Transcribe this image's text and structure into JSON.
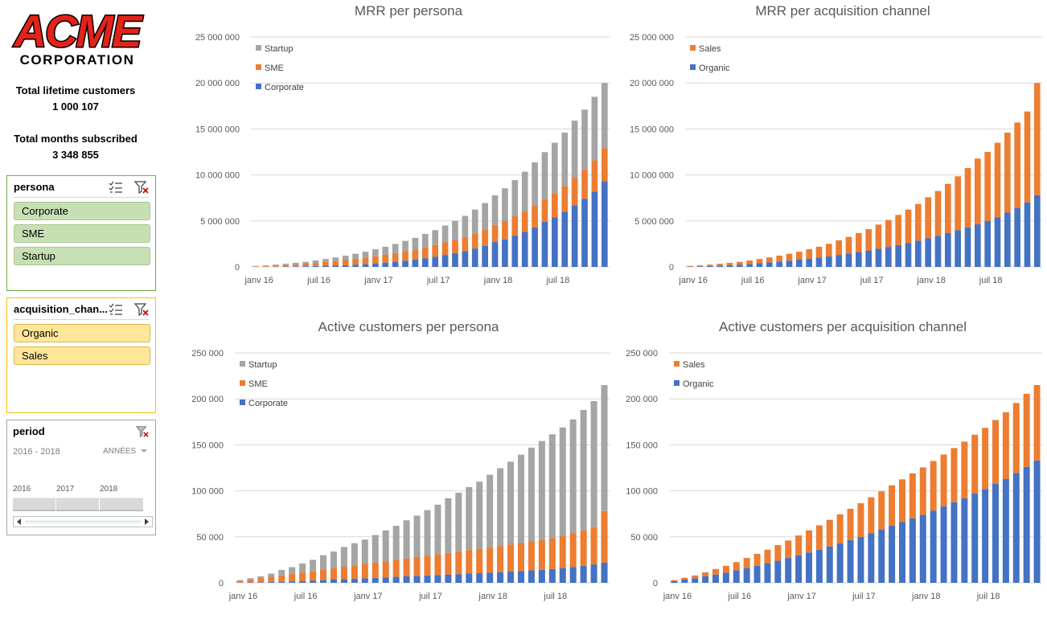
{
  "logo": {
    "line1": "ACME",
    "line2": "CORPORATION"
  },
  "stats": [
    {
      "label": "Total lifetime customers",
      "value": "1 000 107"
    },
    {
      "label": "Total months subscribed",
      "value": "3 348 855"
    }
  ],
  "slicers": {
    "persona": {
      "title": "persona",
      "items": [
        "Corporate",
        "SME",
        "Startup"
      ]
    },
    "acquisition": {
      "title": "acquisition_chan...",
      "items": [
        "Organic",
        "Sales"
      ]
    },
    "period": {
      "title": "period",
      "range": "2016 - 2018",
      "level": "ANNÉES",
      "years": [
        "2016",
        "2017",
        "2018"
      ]
    }
  },
  "colors": {
    "corporate": "#4472c4",
    "sme": "#ed7d31",
    "startup": "#a5a5a5",
    "organic": "#4472c4",
    "sales": "#ed7d31",
    "persona_border": "#70ad47",
    "acq_border": "#ffc000",
    "period_border": "#a5a5a5"
  },
  "icons": [
    "multi-select-icon",
    "clear-filter-icon",
    "scroll-left-icon",
    "scroll-right-icon",
    "chevron-down-icon"
  ],
  "chart_data": [
    {
      "type": "bar",
      "stacked": true,
      "title": "MRR per persona",
      "x": [
        "janv 16",
        "févr 16",
        "mars 16",
        "avr 16",
        "mai 16",
        "juin 16",
        "juil 16",
        "août 16",
        "sept 16",
        "oct 16",
        "nov 16",
        "déc 16",
        "janv 17",
        "févr 17",
        "mars 17",
        "avr 17",
        "mai 17",
        "juin 17",
        "juil 17",
        "août 17",
        "sept 17",
        "oct 17",
        "nov 17",
        "déc 17",
        "janv 18",
        "févr 18",
        "mars 18",
        "avr 18",
        "mai 18",
        "juin 18",
        "juil 18",
        "août 18",
        "sept 18",
        "oct 18",
        "nov 18",
        "déc 18"
      ],
      "xticks": [
        "janv 16",
        "juil 16",
        "janv 17",
        "juil 17",
        "janv 18",
        "juil 18"
      ],
      "ylim": [
        0,
        25000000
      ],
      "yticks": [
        "0",
        "5 000 000",
        "10 000 000",
        "15 000 000",
        "20 000 000",
        "25 000 000"
      ],
      "legend_position": "top-left",
      "series": [
        {
          "name": "Corporate",
          "color": "#4472c4",
          "values": [
            10000,
            20000,
            30000,
            40000,
            60000,
            80000,
            100000,
            130000,
            160000,
            200000,
            250000,
            300000,
            380000,
            460000,
            560000,
            680000,
            800000,
            950000,
            1100000,
            1300000,
            1500000,
            1700000,
            2000000,
            2300000,
            2700000,
            3000000,
            3400000,
            3800000,
            4300000,
            4900000,
            5400000,
            6000000,
            6700000,
            7400000,
            8200000,
            9300000
          ]
        },
        {
          "name": "SME",
          "color": "#ed7d31",
          "values": [
            60000,
            90000,
            130000,
            170000,
            220000,
            270000,
            330000,
            400000,
            470000,
            540000,
            620000,
            700000,
            780000,
            860000,
            950000,
            1030000,
            1100000,
            1200000,
            1280000,
            1370000,
            1450000,
            1550000,
            1650000,
            1750000,
            1870000,
            1990000,
            2100000,
            2220000,
            2340000,
            2480000,
            2620000,
            2800000,
            3000000,
            3200000,
            3400000,
            3600000
          ]
        },
        {
          "name": "Startup",
          "color": "#a5a5a5",
          "values": [
            40000,
            60000,
            90000,
            130000,
            160000,
            200000,
            270000,
            330000,
            400000,
            480000,
            560000,
            650000,
            760000,
            870000,
            990000,
            1120000,
            1260000,
            1430000,
            1620000,
            1830000,
            2050000,
            2300000,
            2580000,
            2890000,
            3210000,
            3560000,
            3930000,
            4330000,
            4720000,
            5100000,
            5480000,
            5800000,
            6200000,
            6500000,
            6900000,
            7100000
          ]
        }
      ]
    },
    {
      "type": "bar",
      "stacked": true,
      "title": "MRR per acquisition channel",
      "x": [
        "janv 16",
        "févr 16",
        "mars 16",
        "avr 16",
        "mai 16",
        "juin 16",
        "juil 16",
        "août 16",
        "sept 16",
        "oct 16",
        "nov 16",
        "déc 16",
        "janv 17",
        "févr 17",
        "mars 17",
        "avr 17",
        "mai 17",
        "juin 17",
        "juil 17",
        "août 17",
        "sept 17",
        "oct 17",
        "nov 17",
        "déc 17",
        "janv 18",
        "févr 18",
        "mars 18",
        "avr 18",
        "mai 18",
        "juin 18",
        "juil 18",
        "août 18",
        "sept 18",
        "oct 18",
        "nov 18",
        "déc 18"
      ],
      "xticks": [
        "janv 16",
        "juil 16",
        "janv 17",
        "juil 17",
        "janv 18",
        "juil 18"
      ],
      "ylim": [
        0,
        25000000
      ],
      "yticks": [
        "0",
        "5 000 000",
        "10 000 000",
        "15 000 000",
        "20 000 000",
        "25 000 000"
      ],
      "legend_position": "top-left",
      "series": [
        {
          "name": "Organic",
          "color": "#4472c4",
          "values": [
            30000,
            60000,
            100000,
            150000,
            200000,
            250000,
            320000,
            400000,
            490000,
            580000,
            680000,
            790000,
            900000,
            1020000,
            1150000,
            1300000,
            1450000,
            1610000,
            1780000,
            1970000,
            2170000,
            2380000,
            2610000,
            2850000,
            3100000,
            3380000,
            3670000,
            3980000,
            4300000,
            4630000,
            5000000,
            5400000,
            5900000,
            6400000,
            7000000,
            7800000
          ]
        },
        {
          "name": "Sales",
          "color": "#ed7d31",
          "values": [
            80000,
            110000,
            150000,
            190000,
            240000,
            300000,
            380000,
            460000,
            540000,
            640000,
            750000,
            860000,
            1020000,
            1170000,
            1360000,
            1590000,
            1810000,
            2070000,
            2320000,
            2630000,
            2930000,
            3270000,
            3620000,
            3990000,
            4470000,
            4870000,
            5360000,
            5870000,
            6460000,
            7150000,
            7500000,
            8100000,
            8700000,
            9300000,
            9900000,
            12200000
          ]
        }
      ]
    },
    {
      "type": "bar",
      "stacked": true,
      "title": "Active customers per persona",
      "x": [
        "janv 16",
        "févr 16",
        "mars 16",
        "avr 16",
        "mai 16",
        "juin 16",
        "juil 16",
        "août 16",
        "sept 16",
        "oct 16",
        "nov 16",
        "déc 16",
        "janv 17",
        "févr 17",
        "mars 17",
        "avr 17",
        "mai 17",
        "juin 17",
        "juil 17",
        "août 17",
        "sept 17",
        "oct 17",
        "nov 17",
        "déc 17",
        "janv 18",
        "févr 18",
        "mars 18",
        "avr 18",
        "mai 18",
        "juin 18",
        "juil 18",
        "août 18",
        "sept 18",
        "oct 18",
        "nov 18",
        "déc 18"
      ],
      "xticks": [
        "janv 16",
        "juil 16",
        "janv 17",
        "juil 17",
        "janv 18",
        "juil 18"
      ],
      "ylim": [
        0,
        250000
      ],
      "yticks": [
        "0",
        "50 000",
        "100 000",
        "150 000",
        "200 000",
        "250 000"
      ],
      "legend_position": "top-left",
      "series": [
        {
          "name": "Corporate",
          "color": "#4472c4",
          "values": [
            200,
            400,
            600,
            900,
            1200,
            1600,
            2000,
            2500,
            3000,
            3500,
            4000,
            4500,
            5000,
            5500,
            6000,
            6500,
            7000,
            7500,
            8000,
            8500,
            9000,
            9500,
            10000,
            10500,
            11000,
            11600,
            12200,
            12800,
            13500,
            14200,
            15000,
            16000,
            17200,
            18500,
            20000,
            22000
          ]
        },
        {
          "name": "SME",
          "color": "#ed7d31",
          "values": [
            1800,
            3100,
            4400,
            5600,
            6800,
            8000,
            9200,
            10300,
            11400,
            12500,
            13500,
            14500,
            15500,
            16500,
            17500,
            18500,
            19500,
            20500,
            21500,
            22500,
            23500,
            24500,
            25500,
            26500,
            27500,
            28500,
            29500,
            30500,
            31500,
            32500,
            33500,
            35000,
            36500,
            38500,
            40500,
            56000
          ]
        },
        {
          "name": "Startup",
          "color": "#a5a5a5",
          "values": [
            1000,
            1500,
            2000,
            3500,
            6000,
            7400,
            9800,
            12200,
            15600,
            18000,
            21500,
            24000,
            26500,
            30000,
            33500,
            37000,
            41500,
            45000,
            49500,
            54000,
            59500,
            64000,
            68500,
            73000,
            79000,
            84500,
            90000,
            96000,
            102000,
            107500,
            113000,
            118000,
            124000,
            131000,
            137000,
            137000
          ]
        }
      ]
    },
    {
      "type": "bar",
      "stacked": true,
      "title": "Active customers per acquisition channel",
      "x": [
        "janv 16",
        "févr 16",
        "mars 16",
        "avr 16",
        "mai 16",
        "juin 16",
        "juil 16",
        "août 16",
        "sept 16",
        "oct 16",
        "nov 16",
        "déc 16",
        "janv 17",
        "févr 17",
        "mars 17",
        "avr 17",
        "mai 17",
        "juin 17",
        "juil 17",
        "août 17",
        "sept 17",
        "oct 17",
        "nov 17",
        "déc 17",
        "janv 18",
        "févr 18",
        "mars 18",
        "avr 18",
        "mai 18",
        "juin 18",
        "juil 18",
        "août 18",
        "sept 18",
        "oct 18",
        "nov 18",
        "déc 18"
      ],
      "xticks": [
        "janv 16",
        "juil 16",
        "janv 17",
        "juil 17",
        "janv 18",
        "juil 18"
      ],
      "ylim": [
        0,
        250000
      ],
      "yticks": [
        "0",
        "50 000",
        "100 000",
        "150 000",
        "200 000",
        "250 000"
      ],
      "legend_position": "top-left",
      "series": [
        {
          "name": "Organic",
          "color": "#4472c4",
          "values": [
            2000,
            3500,
            5000,
            7000,
            9000,
            11000,
            13500,
            16000,
            18500,
            21000,
            24000,
            27000,
            30000,
            33000,
            36000,
            39500,
            43000,
            46500,
            50000,
            54000,
            58000,
            62000,
            66000,
            70000,
            74000,
            78500,
            83000,
            87500,
            92000,
            97000,
            102000,
            107500,
            113000,
            119500,
            126000,
            133000
          ]
        },
        {
          "name": "Sales",
          "color": "#ed7d31",
          "values": [
            1000,
            2000,
            3000,
            4500,
            6000,
            7500,
            9000,
            11000,
            13000,
            15000,
            17000,
            19000,
            21500,
            24000,
            26500,
            29000,
            31500,
            34000,
            36500,
            39000,
            41500,
            44000,
            46500,
            49000,
            51500,
            54000,
            56500,
            59000,
            61500,
            64000,
            66500,
            69500,
            72500,
            76000,
            79500,
            82000
          ]
        }
      ]
    }
  ]
}
